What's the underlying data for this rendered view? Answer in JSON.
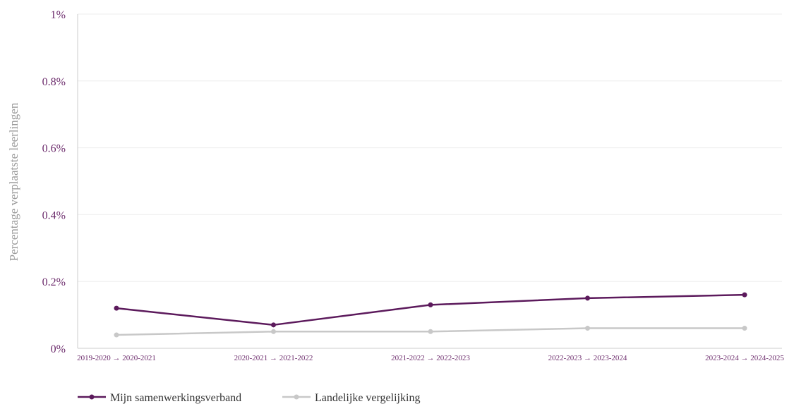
{
  "chart_data": {
    "type": "line",
    "title": "",
    "xlabel": "",
    "ylabel": "Percentage verplaatste leerlingen",
    "ylim": [
      0,
      1
    ],
    "y_ticks": [
      "0%",
      "0.2%",
      "0.4%",
      "0.6%",
      "0.8%",
      "1%"
    ],
    "y_tick_values": [
      0,
      0.2,
      0.4,
      0.6,
      0.8,
      1
    ],
    "categories": [
      "2019-2020 → 2020-2021",
      "2020-2021 → 2021-2022",
      "2021-2022 → 2022-2023",
      "2022-2023 → 2023-2024",
      "2023-2024 → 2024-2025"
    ],
    "series": [
      {
        "name": "Mijn samenwerkingsverband",
        "color": "#5c1a5c",
        "values": [
          0.12,
          0.07,
          0.13,
          0.15,
          0.16
        ]
      },
      {
        "name": "Landelijke vergelijking",
        "color": "#c8c8c8",
        "values": [
          0.04,
          0.05,
          0.05,
          0.06,
          0.06
        ]
      }
    ],
    "grid": true,
    "legend_position": "bottom-left"
  }
}
